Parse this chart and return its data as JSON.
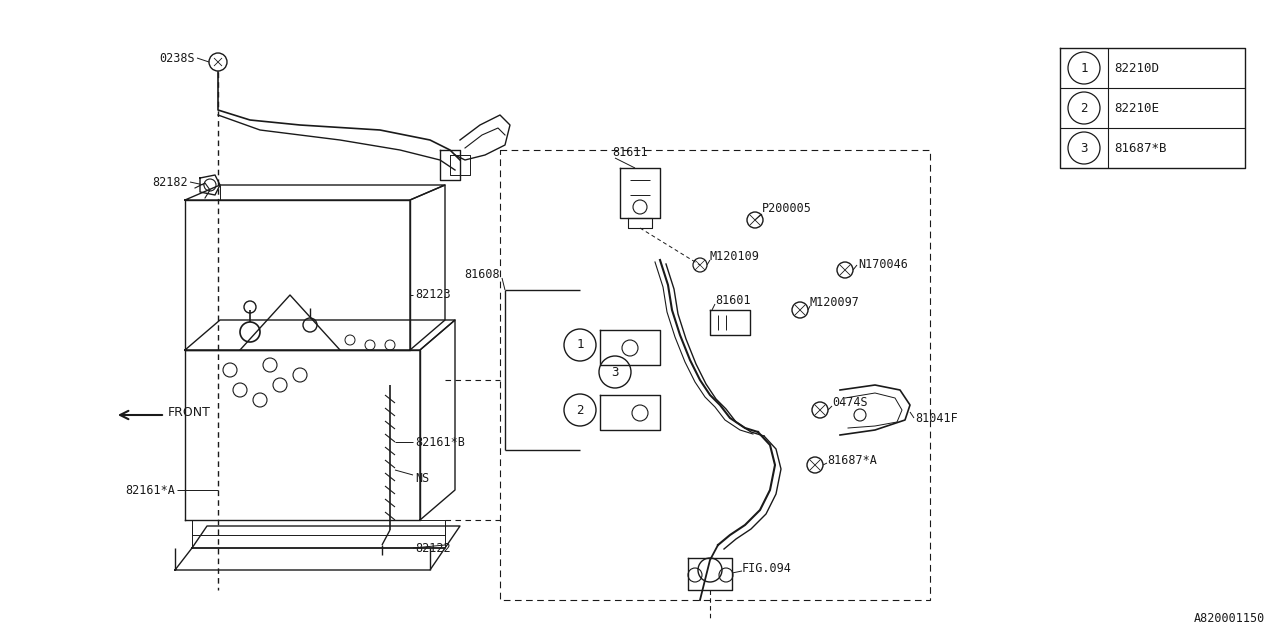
{
  "bg_color": "#ffffff",
  "line_color": "#1a1a1a",
  "text_color": "#1a1a1a",
  "fig_id": "A820001150",
  "legend_items": [
    {
      "num": "1",
      "code": "82210D"
    },
    {
      "num": "2",
      "code": "82210E"
    },
    {
      "num": "3",
      "code": "81687*B"
    }
  ]
}
